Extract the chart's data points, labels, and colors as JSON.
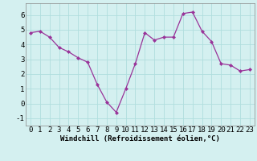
{
  "x": [
    0,
    1,
    2,
    3,
    4,
    5,
    6,
    7,
    8,
    9,
    10,
    11,
    12,
    13,
    14,
    15,
    16,
    17,
    18,
    19,
    20,
    21,
    22,
    23
  ],
  "y": [
    4.8,
    4.9,
    4.5,
    3.8,
    3.5,
    3.1,
    2.8,
    1.3,
    0.1,
    -0.6,
    1.0,
    2.7,
    4.8,
    4.3,
    4.5,
    4.5,
    6.1,
    6.2,
    4.9,
    4.2,
    2.7,
    2.6,
    2.2,
    2.3
  ],
  "line_color": "#993399",
  "marker": "D",
  "marker_size": 2.0,
  "background_color": "#d4f0f0",
  "grid_color": "#b0dede",
  "xlabel": "Windchill (Refroidissement éolien,°C)",
  "ylim": [
    -1.5,
    6.8
  ],
  "xlim": [
    -0.5,
    23.5
  ],
  "yticks": [
    -1,
    0,
    1,
    2,
    3,
    4,
    5,
    6
  ],
  "xticks": [
    0,
    1,
    2,
    3,
    4,
    5,
    6,
    7,
    8,
    9,
    10,
    11,
    12,
    13,
    14,
    15,
    16,
    17,
    18,
    19,
    20,
    21,
    22,
    23
  ],
  "xlabel_fontsize": 6.5,
  "tick_fontsize": 6.5,
  "spine_color": "#888888",
  "line_width": 0.9
}
